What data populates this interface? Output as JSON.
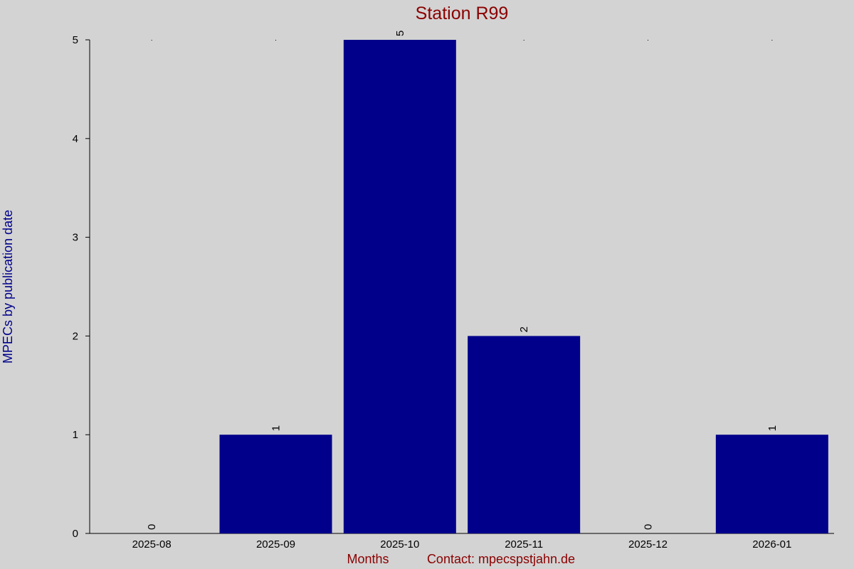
{
  "chart_data": {
    "type": "bar",
    "title": "Station R99",
    "y_label": "MPECs by publication date",
    "x_label": "Months",
    "note": "Contact: mpecspstjahn.de",
    "categories": [
      "2025-08",
      "2025-09",
      "2025-10",
      "2025-11",
      "2025-12",
      "2026-01"
    ],
    "values": [
      0,
      1,
      5,
      2,
      0,
      1
    ],
    "color": "#00008b",
    "ylim": [
      0,
      5
    ],
    "yticks": [
      0,
      1,
      2,
      3,
      4,
      5
    ],
    "show_value_labels": true
  }
}
